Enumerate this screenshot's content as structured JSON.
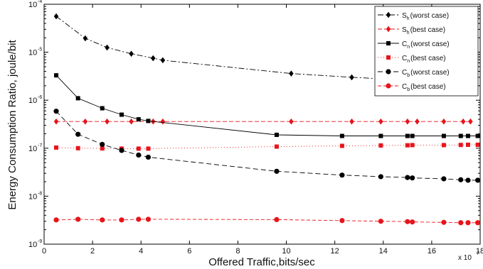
{
  "chart_data": {
    "type": "line",
    "xlabel": "Offered Traffic,bits/sec",
    "ylabel": "Energy Consumption Ratio, joule/bit",
    "x_multiplier_label": "x 10",
    "x_multiplier_exp": "7",
    "xlim": [
      0,
      18
    ],
    "ylim": [
      1e-09,
      0.0001
    ],
    "y_scale": "log",
    "x_ticks": [
      "0",
      "2",
      "4",
      "6",
      "8",
      "10",
      "12",
      "14",
      "16",
      "18"
    ],
    "y_ticks": [
      {
        "base": "10",
        "exp": "-9",
        "value": 1e-09
      },
      {
        "base": "10",
        "exp": "-8",
        "value": 1e-08
      },
      {
        "base": "10",
        "exp": "-7",
        "value": 1e-07
      },
      {
        "base": "10",
        "exp": "-6",
        "value": 1e-06
      },
      {
        "base": "10",
        "exp": "-5",
        "value": 1e-05
      },
      {
        "base": "10",
        "exp": "-4",
        "value": 0.0001
      }
    ],
    "grid": false,
    "legend_position": "top-right",
    "series": [
      {
        "name_main": "S",
        "name_sub": "h",
        "name_rest": "(worst case)",
        "color": "#000000",
        "marker": "diamond",
        "dash": "8,3,2,3",
        "x": [
          0.5,
          1.7,
          2.6,
          3.6,
          4.5,
          4.9,
          10.2,
          12.7,
          13.9
        ],
        "y": [
          5.6e-05,
          1.95e-05,
          1.25e-05,
          9.3e-06,
          7.5e-06,
          6.8e-06,
          3.6e-06,
          3e-06,
          2.8e-06
        ]
      },
      {
        "name_main": "S",
        "name_sub": "h",
        "name_rest": "(best case)",
        "color": "#e8141b",
        "marker": "diamond",
        "dash": "6,3",
        "x": [
          0.5,
          1.7,
          2.6,
          3.6,
          4.5,
          4.9,
          10.2,
          12.7,
          13.9,
          15.0,
          15.4,
          16.5,
          17.3,
          17.6
        ],
        "y": [
          3.6e-07,
          3.6e-07,
          3.6e-07,
          3.6e-07,
          3.6e-07,
          3.6e-07,
          3.6e-07,
          3.6e-07,
          3.6e-07,
          3.6e-07,
          3.6e-07,
          3.6e-07,
          3.6e-07,
          3.6e-07
        ]
      },
      {
        "name_main": "C",
        "name_sub": "n",
        "name_rest": "(worst case)",
        "color": "#000000",
        "marker": "square",
        "dash": "",
        "x": [
          0.5,
          1.4,
          2.4,
          3.2,
          3.9,
          4.3,
          9.6,
          12.3,
          13.9,
          15.0,
          15.2,
          16.5,
          17.2,
          17.5,
          17.9
        ],
        "y": [
          3.3e-06,
          1.1e-06,
          6.8e-07,
          5e-07,
          4e-07,
          3.7e-07,
          1.9e-07,
          1.8e-07,
          1.8e-07,
          1.8e-07,
          1.8e-07,
          1.8e-07,
          1.8e-07,
          1.8e-07,
          1.8e-07
        ]
      },
      {
        "name_main": "C",
        "name_sub": "n",
        "name_rest": "(best case)",
        "color": "#e8141b",
        "marker": "square",
        "dash": "1,3",
        "x": [
          0.5,
          1.4,
          2.4,
          3.2,
          3.9,
          4.3,
          9.6,
          12.3,
          13.9,
          15.0,
          15.2,
          16.5,
          17.2,
          17.5,
          17.9
        ],
        "y": [
          1.03e-07,
          1e-07,
          9.9e-08,
          9.8e-08,
          9.8e-08,
          9.8e-08,
          1.08e-07,
          1.12e-07,
          1.14e-07,
          1.15e-07,
          1.16e-07,
          1.16e-07,
          1.17e-07,
          1.18e-07,
          1.18e-07
        ]
      },
      {
        "name_main": "C",
        "name_sub": "b",
        "name_rest": "(worst case)",
        "color": "#000000",
        "marker": "circle",
        "dash": "7,4",
        "x": [
          0.5,
          1.4,
          2.4,
          3.2,
          3.9,
          4.3,
          9.6,
          12.3,
          13.9,
          15.0,
          15.2,
          16.5,
          17.2,
          17.5,
          17.9
        ],
        "y": [
          5.9e-07,
          1.95e-07,
          1.2e-07,
          9e-08,
          7.2e-08,
          6.5e-08,
          3.3e-08,
          2.75e-08,
          2.55e-08,
          2.45e-08,
          2.4e-08,
          2.3e-08,
          2.2e-08,
          2.15e-08,
          2.15e-08
        ]
      },
      {
        "name_main": "C",
        "name_sub": "b",
        "name_rest": "(best case)",
        "color": "#e8141b",
        "marker": "circle",
        "dash": "5,3",
        "x": [
          0.5,
          1.4,
          2.4,
          3.2,
          3.9,
          4.3,
          9.6,
          12.3,
          13.9,
          15.0,
          15.2,
          16.5,
          17.2,
          17.5,
          17.9
        ],
        "y": [
          3.2e-09,
          3.3e-09,
          3.2e-09,
          3.2e-09,
          3.3e-09,
          3.3e-09,
          3.25e-09,
          3.1e-09,
          3e-09,
          2.95e-09,
          2.9e-09,
          2.85e-09,
          2.8e-09,
          2.8e-09,
          2.8e-09
        ]
      }
    ]
  }
}
